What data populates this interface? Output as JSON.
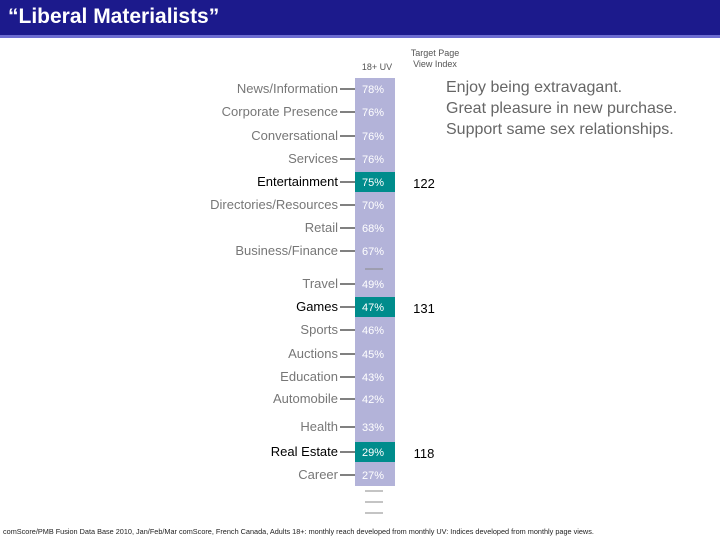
{
  "title": "“Liberal Materialists”",
  "header": {
    "uv_label": "18+ UV",
    "index_label_line1": "Target Page",
    "index_label_line2": "View Index"
  },
  "quote_lines": [
    "Enjoy being extravagant.",
    "Great pleasure in new purchase.",
    "Support same sex relationships."
  ],
  "footnote": "comScore/PMB Fusion Data Base 2010, Jan/Feb/Mar comScore, French Canada, Adults 18+: monthly reach developed from monthly UV: Indices developed from monthly page views.",
  "colors": {
    "bar": "#b3b3d9",
    "highlight": "#008c8c",
    "title_bg": "#1c1a8c",
    "muted_text": "#777777",
    "strong_text": "#000000"
  },
  "chart_data": {
    "type": "bar",
    "orientation": "horizontal",
    "categories": [
      "News/Information",
      "Corporate Presence",
      "Conversational",
      "Services",
      "Entertainment",
      "Directories/Resources",
      "Retail",
      "Business/Finance",
      "Travel",
      "Games",
      "Sports",
      "Auctions",
      "Education",
      "Automobile",
      "Health",
      "Real Estate",
      "Career"
    ],
    "value_labels": [
      "78%",
      "76%",
      "76%",
      "76%",
      "75%",
      "70%",
      "68%",
      "67%",
      "49%",
      "47%",
      "46%",
      "45%",
      "43%",
      "42%",
      "33%",
      "29%",
      "27%"
    ],
    "values": [
      78,
      76,
      76,
      76,
      75,
      70,
      68,
      67,
      49,
      47,
      46,
      45,
      43,
      42,
      33,
      29,
      27
    ],
    "highlighted": [
      false,
      false,
      false,
      false,
      true,
      false,
      false,
      false,
      false,
      true,
      false,
      false,
      false,
      false,
      false,
      true,
      false
    ],
    "index_values": [
      "",
      "",
      "",
      "",
      "122",
      "",
      "",
      "",
      "",
      "131",
      "",
      "",
      "",
      "",
      "",
      "118",
      ""
    ]
  }
}
